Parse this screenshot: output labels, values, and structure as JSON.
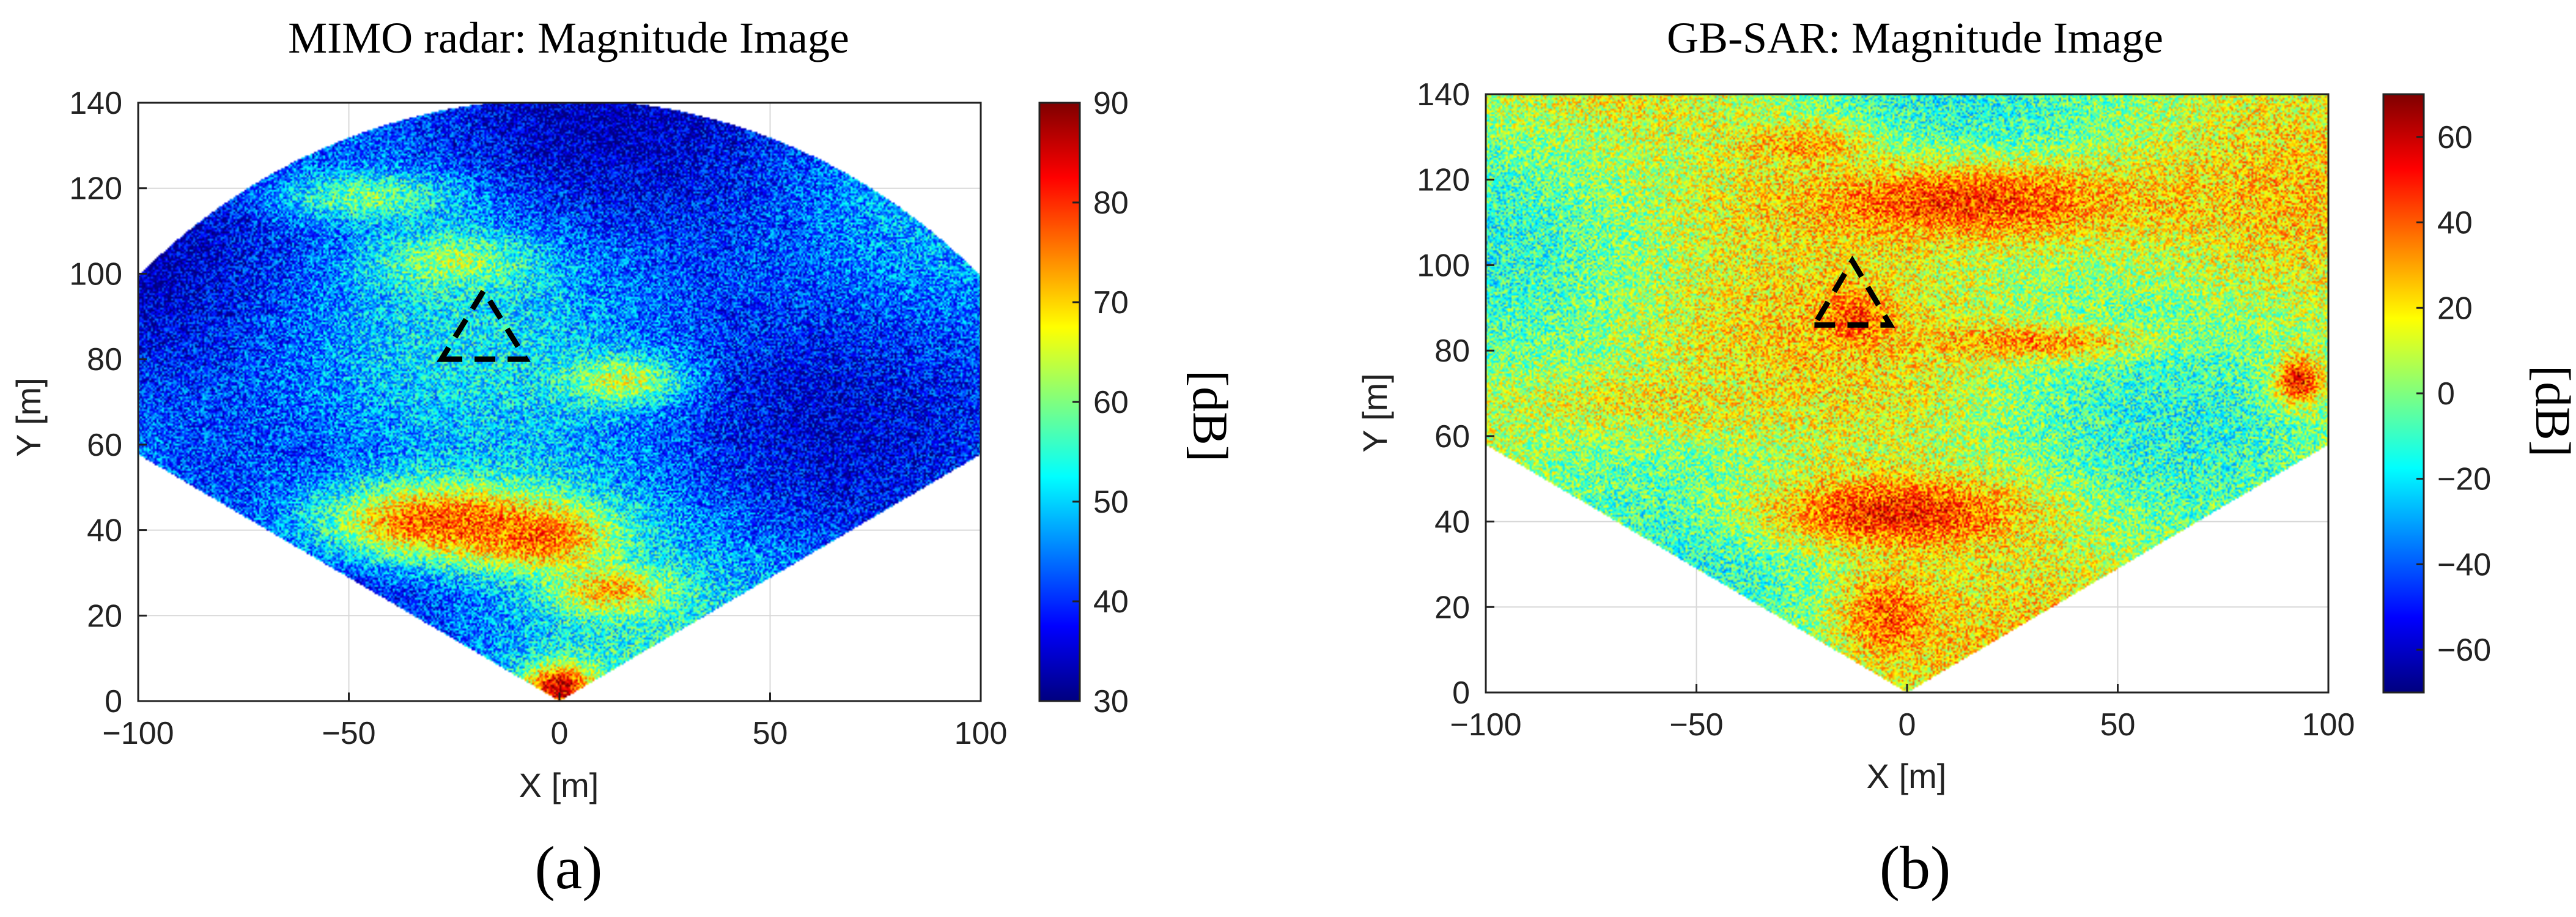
{
  "figure": {
    "captions": [
      "(a)",
      "(b)"
    ]
  },
  "colors": {
    "jet": [
      "#00007f",
      "#0000ff",
      "#007fff",
      "#00ffff",
      "#7fff7f",
      "#ffff00",
      "#ff7f00",
      "#ff0000",
      "#7f0000"
    ],
    "grid": "#d8d8d8",
    "triangle": "#000000"
  },
  "chart_data": [
    {
      "type": "heatmap",
      "title": "MIMO radar: Magnitude Image",
      "xlabel": "X [m]",
      "ylabel": "Y [m]",
      "xlim": [
        -100,
        100
      ],
      "ylim": [
        0,
        140
      ],
      "xticks": [
        -100,
        -50,
        0,
        50,
        100
      ],
      "yticks": [
        0,
        20,
        40,
        60,
        80,
        100,
        120,
        140
      ],
      "colorbar": {
        "label": "[dB]",
        "min": 30,
        "max": 90,
        "ticks": [
          30,
          40,
          50,
          60,
          70,
          80,
          90
        ]
      },
      "coverage": {
        "shape": "fan",
        "apex": [
          0,
          0
        ],
        "radius_m": 141,
        "half_angle_deg": 60
      },
      "background_level_db": 48,
      "hot_regions": [
        {
          "center": [
            -28,
            42
          ],
          "spread": [
            22,
            7
          ],
          "level_db": 80
        },
        {
          "center": [
            -5,
            38
          ],
          "spread": [
            12,
            5
          ],
          "level_db": 78
        },
        {
          "center": [
            12,
            26
          ],
          "spread": [
            10,
            4
          ],
          "level_db": 73
        },
        {
          "center": [
            0,
            3
          ],
          "spread": [
            6,
            4
          ],
          "level_db": 88
        },
        {
          "center": [
            -25,
            103
          ],
          "spread": [
            13,
            5
          ],
          "level_db": 63
        },
        {
          "center": [
            -45,
            118
          ],
          "spread": [
            15,
            4
          ],
          "level_db": 60
        },
        {
          "center": [
            15,
            75
          ],
          "spread": [
            10,
            4
          ],
          "level_db": 66
        }
      ],
      "annotation": {
        "shape": "dashed-triangle",
        "vertices": [
          [
            -28,
            80
          ],
          [
            -8,
            80
          ],
          [
            -18,
            96
          ]
        ]
      }
    },
    {
      "type": "heatmap",
      "title": "GB-SAR: Magnitude Image",
      "xlabel": "X [m]",
      "ylabel": "Y [m]",
      "xlim": [
        -100,
        100
      ],
      "ylim": [
        0,
        140
      ],
      "xticks": [
        -100,
        -50,
        0,
        50,
        100
      ],
      "yticks": [
        0,
        20,
        40,
        60,
        80,
        100,
        120,
        140
      ],
      "colorbar": {
        "label": "[dB]",
        "min": -70,
        "max": 70,
        "ticks": [
          -60,
          -40,
          -20,
          0,
          20,
          40,
          60
        ]
      },
      "coverage": {
        "shape": "truncated-fan",
        "apex": [
          0,
          0
        ],
        "edge_y_at_x100": 58,
        "top_y": 142
      },
      "background_level_db": 5,
      "hot_regions": [
        {
          "center": [
            15,
            115
          ],
          "spread": [
            32,
            7
          ],
          "level_db": 48
        },
        {
          "center": [
            -25,
            128
          ],
          "spread": [
            12,
            4
          ],
          "level_db": 30
        },
        {
          "center": [
            -3,
            42
          ],
          "spread": [
            22,
            6
          ],
          "level_db": 52
        },
        {
          "center": [
            -5,
            18
          ],
          "spread": [
            8,
            7
          ],
          "level_db": 42
        },
        {
          "center": [
            -12,
            88
          ],
          "spread": [
            5,
            4
          ],
          "level_db": 46
        },
        {
          "center": [
            30,
            82
          ],
          "spread": [
            18,
            3
          ],
          "level_db": 35
        },
        {
          "center": [
            93,
            73
          ],
          "spread": [
            4,
            4
          ],
          "level_db": 55
        },
        {
          "center": [
            -60,
            68
          ],
          "spread": [
            25,
            5
          ],
          "level_db": 18
        }
      ],
      "annotation": {
        "shape": "dashed-triangle",
        "vertices": [
          [
            -22,
            86
          ],
          [
            -4,
            86
          ],
          [
            -13,
            101
          ]
        ]
      }
    }
  ]
}
